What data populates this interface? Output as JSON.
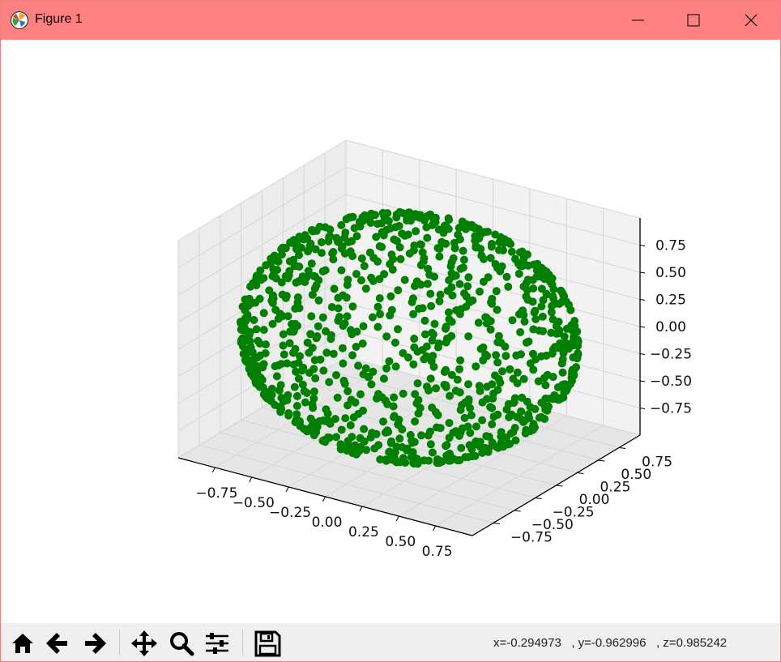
{
  "window": {
    "title": "Figure 1"
  },
  "icons": {
    "app": "matplotlib-icon",
    "minimize": "minimize-icon",
    "maximize": "maximize-icon",
    "close": "close-icon"
  },
  "toolbar": {
    "buttons": [
      "home-icon",
      "back-arrow-icon",
      "forward-arrow-icon",
      "pan-icon",
      "zoom-icon",
      "configure-subplots-icon",
      "save-icon"
    ],
    "coords": "x=-0.294973   , y=-0.962996   , z=0.985242"
  },
  "colors": {
    "titlebar": "#ff8080",
    "points": "#007f00",
    "pane": "#f2f2f2",
    "grid": "#d6d6d6"
  },
  "chart_data": {
    "type": "scatter",
    "projection": "3d",
    "description_of_points": "about 1000 random points on the surface of a unit sphere",
    "x_ticks": [
      "−0.75",
      "−0.50",
      "−0.25",
      "0.00",
      "0.25",
      "0.50",
      "0.75"
    ],
    "y_ticks": [
      "−0.75",
      "−0.50",
      "−0.25",
      "0.00",
      "0.25",
      "0.50",
      "0.75"
    ],
    "z_ticks": [
      "0.75",
      "0.50",
      "0.25",
      "0.00",
      "−0.25",
      "−0.50",
      "−0.75"
    ],
    "xlim": [
      -1,
      1
    ],
    "ylim": [
      -1,
      1
    ],
    "zlim": [
      -1,
      1
    ],
    "grid": true,
    "n_points": 1000,
    "radius": 1,
    "marker_color": "#007f00"
  }
}
